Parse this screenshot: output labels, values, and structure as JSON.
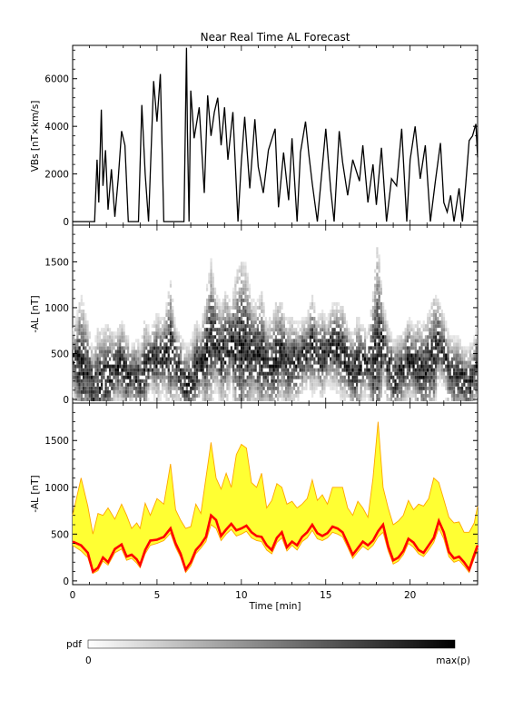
{
  "figure": {
    "title": "Near Real Time AL Forecast"
  },
  "chart_data": [
    {
      "type": "line",
      "panel": "vbs",
      "ylabel": "VBs [nT×km/s]",
      "ylim": [
        -150,
        7400
      ],
      "xlim": [
        0,
        24
      ],
      "yticks": [
        0,
        2000,
        4000,
        6000
      ],
      "x": [
        0,
        0.3,
        0.6,
        1.0,
        1.3,
        1.45,
        1.55,
        1.7,
        1.8,
        1.95,
        2.1,
        2.3,
        2.5,
        2.7,
        2.9,
        3.1,
        3.3,
        3.6,
        3.9,
        4.1,
        4.3,
        4.5,
        4.8,
        5.0,
        5.2,
        5.4,
        5.6,
        5.8,
        6.0,
        6.3,
        6.6,
        6.75,
        6.8,
        6.9,
        7.0,
        7.2,
        7.5,
        7.8,
        8.0,
        8.2,
        8.4,
        8.6,
        8.8,
        9.0,
        9.2,
        9.5,
        9.8,
        10.0,
        10.2,
        10.5,
        10.8,
        11.0,
        11.3,
        11.6,
        12.0,
        12.2,
        12.5,
        12.8,
        13.0,
        13.3,
        13.5,
        13.8,
        14.0,
        14.2,
        14.5,
        14.8,
        15.0,
        15.3,
        15.5,
        15.8,
        16.0,
        16.3,
        16.6,
        17.0,
        17.2,
        17.5,
        17.8,
        18.0,
        18.3,
        18.6,
        18.9,
        19.2,
        19.5,
        19.8,
        20.0,
        20.3,
        20.6,
        20.9,
        21.2,
        21.5,
        21.8,
        22.0,
        22.2,
        22.4,
        22.6,
        22.9,
        23.1,
        23.3,
        23.5,
        23.7,
        23.9,
        24.0
      ],
      "values": [
        0,
        0,
        0,
        0,
        0,
        2600,
        800,
        4700,
        1500,
        3000,
        500,
        2200,
        200,
        1800,
        3800,
        3200,
        0,
        0,
        0,
        4900,
        2000,
        0,
        5900,
        4200,
        6200,
        0,
        0,
        0,
        0,
        0,
        0,
        7300,
        3800,
        0,
        5500,
        3500,
        4800,
        1200,
        5300,
        3600,
        4600,
        5200,
        3200,
        4800,
        2600,
        4600,
        0,
        2500,
        4400,
        1400,
        4300,
        2300,
        1200,
        3000,
        3900,
        600,
        2900,
        900,
        3500,
        0,
        2900,
        4200,
        2800,
        1600,
        0,
        2300,
        3900,
        1300,
        0,
        3800,
        2500,
        1100,
        2600,
        1700,
        3200,
        800,
        2400,
        700,
        3100,
        0,
        1800,
        1500,
        3900,
        0,
        2600,
        4000,
        1800,
        3200,
        0,
        1700,
        3300,
        800,
        400,
        1100,
        0,
        1400,
        0,
        1600,
        3400,
        3600,
        4100,
        2700
      ]
    },
    {
      "type": "heatmap",
      "panel": "al-pdf",
      "ylabel": "-AL [nT]",
      "ylim": [
        -40,
        1900
      ],
      "xlim": [
        0,
        24
      ],
      "yticks": [
        0,
        500,
        1000,
        1500
      ],
      "colorbar": {
        "label": "pdf",
        "min_label": "0",
        "max_label": "max(p)"
      }
    },
    {
      "type": "area",
      "panel": "al-forecast",
      "ylabel": "-AL [nT]",
      "xlabel": "Time [min]",
      "ylim": [
        -40,
        1900
      ],
      "xlim": [
        0,
        24
      ],
      "yticks": [
        0,
        500,
        1000,
        1500
      ],
      "xticks": [
        0,
        5,
        10,
        15,
        20
      ],
      "colors": {
        "band": "#ffff33",
        "band_edge": "#ffa500",
        "median": "#ff0000"
      },
      "x": [
        0,
        0.5,
        0.9,
        1.2,
        1.5,
        1.8,
        2.1,
        2.5,
        2.9,
        3.2,
        3.5,
        3.8,
        4.0,
        4.3,
        4.6,
        5.0,
        5.4,
        5.8,
        6.1,
        6.4,
        6.7,
        7.0,
        7.3,
        7.6,
        7.9,
        8.2,
        8.5,
        8.8,
        9.1,
        9.4,
        9.7,
        10.0,
        10.3,
        10.6,
        10.9,
        11.2,
        11.5,
        11.8,
        12.1,
        12.4,
        12.7,
        13.0,
        13.3,
        13.6,
        13.9,
        14.2,
        14.5,
        14.8,
        15.1,
        15.4,
        15.7,
        16.0,
        16.3,
        16.6,
        16.9,
        17.2,
        17.5,
        17.8,
        18.1,
        18.4,
        18.7,
        19.0,
        19.3,
        19.6,
        19.9,
        20.2,
        20.5,
        20.8,
        21.1,
        21.4,
        21.7,
        22.0,
        22.3,
        22.6,
        22.9,
        23.2,
        23.5,
        23.8,
        24.0
      ],
      "median": [
        420,
        380,
        300,
        100,
        140,
        250,
        200,
        340,
        390,
        260,
        280,
        230,
        170,
        330,
        430,
        440,
        470,
        560,
        400,
        290,
        120,
        200,
        330,
        390,
        470,
        700,
        650,
        480,
        550,
        610,
        540,
        560,
        590,
        520,
        480,
        470,
        380,
        330,
        460,
        520,
        360,
        420,
        380,
        470,
        520,
        600,
        510,
        480,
        510,
        580,
        560,
        520,
        400,
        280,
        350,
        420,
        380,
        430,
        530,
        600,
        370,
        220,
        250,
        320,
        450,
        410,
        330,
        300,
        380,
        460,
        640,
        520,
        310,
        240,
        260,
        200,
        120,
        280,
        380
      ],
      "upper": [
        700,
        1100,
        800,
        500,
        720,
        700,
        780,
        660,
        820,
        700,
        560,
        620,
        560,
        830,
        700,
        880,
        820,
        1250,
        760,
        650,
        560,
        580,
        820,
        720,
        1100,
        1480,
        1100,
        980,
        1150,
        1000,
        1350,
        1460,
        1420,
        1050,
        1000,
        1150,
        780,
        860,
        1040,
        1000,
        820,
        850,
        780,
        820,
        880,
        1080,
        860,
        920,
        820,
        1000,
        1000,
        1000,
        780,
        700,
        850,
        780,
        680,
        1100,
        1700,
        1000,
        780,
        600,
        640,
        700,
        860,
        760,
        820,
        800,
        880,
        1100,
        1050,
        870,
        680,
        620,
        630,
        520,
        520,
        620,
        800
      ],
      "lower": [
        380,
        320,
        250,
        80,
        110,
        210,
        170,
        300,
        340,
        220,
        240,
        190,
        140,
        290,
        380,
        400,
        430,
        510,
        360,
        250,
        90,
        160,
        290,
        350,
        420,
        600,
        560,
        430,
        500,
        550,
        480,
        500,
        530,
        460,
        430,
        420,
        330,
        290,
        410,
        460,
        320,
        380,
        330,
        420,
        460,
        540,
        450,
        430,
        460,
        520,
        500,
        470,
        360,
        240,
        310,
        370,
        330,
        380,
        470,
        520,
        320,
        180,
        210,
        280,
        400,
        360,
        290,
        260,
        330,
        410,
        560,
        450,
        260,
        200,
        220,
        160,
        90,
        240,
        330
      ]
    }
  ]
}
